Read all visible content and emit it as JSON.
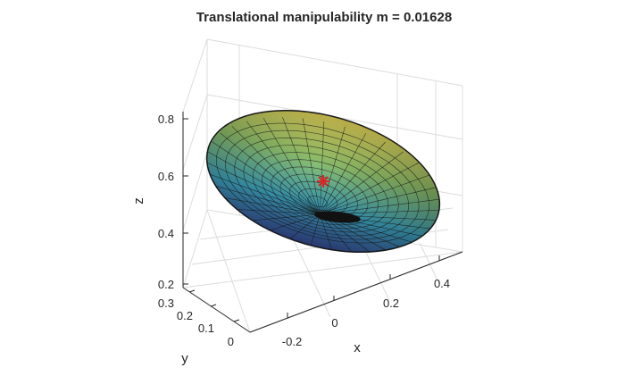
{
  "chart_data": {
    "type": "surface",
    "title": "Translational manipulability m = 0.01628",
    "xlabel": "x",
    "ylabel": "y",
    "zlabel": "z",
    "x_ticks": [
      "-0.2",
      "0",
      "0.2",
      "0.4"
    ],
    "y_ticks": [
      "0",
      "0.1",
      "0.2",
      "0.3"
    ],
    "z_ticks": [
      "0.2",
      "0.4",
      "0.6",
      "0.8"
    ],
    "xlim": [
      -0.3,
      0.5
    ],
    "ylim": [
      0,
      0.3
    ],
    "zlim": [
      0.2,
      0.85
    ],
    "grid": true,
    "colormap": "parula",
    "ellipsoid": {
      "center": [
        0.0,
        0.15,
        0.58
      ]
    },
    "marker": {
      "symbol": "*",
      "color": "#d62728",
      "point": [
        0.0,
        0.15,
        0.58
      ]
    },
    "colors": {
      "grid": "#dcdcdc",
      "axis": "#262626",
      "mesh": "#1a1a1a"
    }
  }
}
